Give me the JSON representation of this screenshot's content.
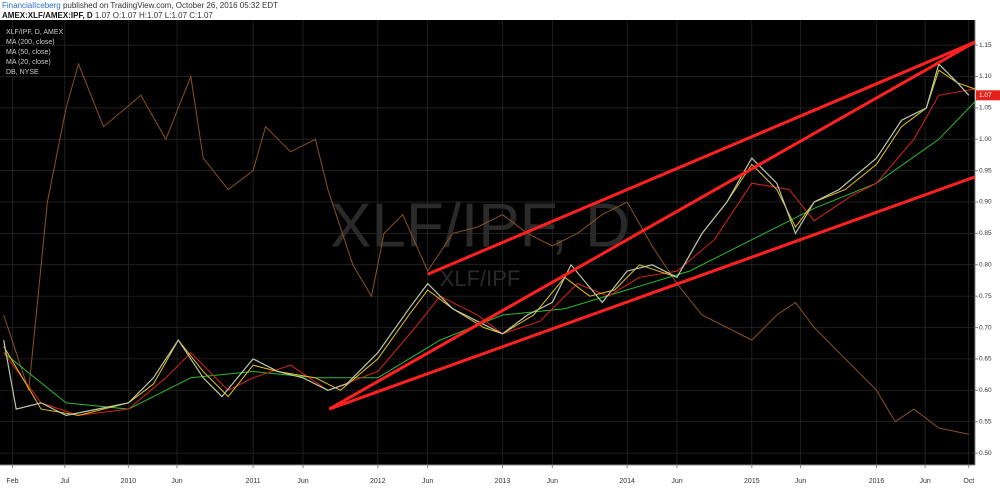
{
  "header": {
    "author": "FinancialIceberg",
    "published": "published on TradingView.com, October 26, 2016 05:32 EDT",
    "symbol": "AMEX:XLF/AMEX:IPF, D",
    "last": 1.07,
    "ohlc": [
      {
        "label": "O:",
        "value": 1.07
      },
      {
        "label": "H:",
        "value": 1.07
      },
      {
        "label": "L:",
        "value": 1.07
      },
      {
        "label": "C:",
        "value": 1.07
      }
    ]
  },
  "chart_data": {
    "type": "line",
    "watermark": "XLF/IPF, D",
    "watermark_small": "XLF/IPF",
    "last_price": 1.07,
    "last_price_color": "#e4221b",
    "grid": true,
    "xlim": [
      2008.97,
      2016.79
    ],
    "ylim": [
      0.481,
      1.19
    ],
    "xticks": [
      {
        "value": 2009.07,
        "label": "Feb"
      },
      {
        "value": 2009.49,
        "label": "Jul"
      },
      {
        "value": 2010.0,
        "label": "2010"
      },
      {
        "value": 2010.39,
        "label": "Jun"
      },
      {
        "value": 2011.0,
        "label": "2011"
      },
      {
        "value": 2011.4,
        "label": "Jun"
      },
      {
        "value": 2012.0,
        "label": "2012"
      },
      {
        "value": 2012.4,
        "label": "Jun"
      },
      {
        "value": 2013.0,
        "label": "2013"
      },
      {
        "value": 2013.4,
        "label": "Jun"
      },
      {
        "value": 2014.0,
        "label": "2014"
      },
      {
        "value": 2014.4,
        "label": "Jun"
      },
      {
        "value": 2015.0,
        "label": "2015"
      },
      {
        "value": 2015.39,
        "label": "Jun"
      },
      {
        "value": 2016.0,
        "label": "2016"
      },
      {
        "value": 2016.39,
        "label": "Jun"
      },
      {
        "value": 2016.74,
        "label": "Oct"
      }
    ],
    "yticks": [
      {
        "value": 0.5,
        "label": "0.50"
      },
      0.55,
      {
        "value": 0.6,
        "label": "0.60"
      },
      0.65,
      {
        "value": 0.7,
        "label": "0.70"
      },
      0.75,
      {
        "value": 0.8,
        "label": "0.80"
      },
      0.85,
      {
        "value": 0.9,
        "label": "0.90"
      },
      0.95,
      {
        "value": 1.0,
        "label": "1.00"
      },
      1.05,
      {
        "value": 1.1,
        "label": "1.10"
      },
      1.15
    ],
    "series": [
      {
        "name": "XLF/IPF, D, AMEX",
        "color": "#b8c8a8",
        "x": [
          2009.0,
          2009.1,
          2009.3,
          2009.5,
          2009.75,
          2010.0,
          2010.2,
          2010.4,
          2010.6,
          2010.75,
          2011.0,
          2011.2,
          2011.4,
          2011.6,
          2011.75,
          2012.0,
          2012.25,
          2012.4,
          2012.6,
          2012.8,
          2013.0,
          2013.2,
          2013.4,
          2013.55,
          2013.8,
          2014.0,
          2014.2,
          2014.4,
          2014.6,
          2014.8,
          2015.0,
          2015.2,
          2015.35,
          2015.5,
          2015.7,
          2016.0,
          2016.2,
          2016.4,
          2016.5,
          2016.65,
          2016.74
        ],
        "values": [
          0.68,
          0.57,
          0.58,
          0.56,
          0.57,
          0.58,
          0.62,
          0.68,
          0.62,
          0.59,
          0.65,
          0.63,
          0.62,
          0.6,
          0.61,
          0.66,
          0.73,
          0.77,
          0.73,
          0.71,
          0.69,
          0.72,
          0.74,
          0.8,
          0.74,
          0.79,
          0.8,
          0.78,
          0.85,
          0.9,
          0.97,
          0.93,
          0.85,
          0.9,
          0.92,
          0.97,
          1.03,
          1.05,
          1.12,
          1.09,
          1.07
        ]
      },
      {
        "name": "MA (200, close)",
        "color": "#2db82d",
        "x": [
          2009.0,
          2009.5,
          2010.0,
          2010.5,
          2011.0,
          2011.5,
          2012.0,
          2012.5,
          2013.0,
          2013.5,
          2014.0,
          2014.5,
          2015.0,
          2015.5,
          2016.0,
          2016.5,
          2016.79
        ],
        "values": [
          0.66,
          0.58,
          0.57,
          0.62,
          0.63,
          0.62,
          0.62,
          0.68,
          0.72,
          0.73,
          0.76,
          0.79,
          0.84,
          0.89,
          0.93,
          1.0,
          1.06
        ]
      },
      {
        "name": "MA (50, close)",
        "color": "#d8231b",
        "x": [
          2009.0,
          2009.3,
          2009.6,
          2010.0,
          2010.3,
          2010.5,
          2010.8,
          2011.0,
          2011.3,
          2011.6,
          2012.0,
          2012.3,
          2012.5,
          2012.8,
          2013.0,
          2013.3,
          2013.6,
          2013.85,
          2014.1,
          2014.4,
          2014.7,
          2015.0,
          2015.3,
          2015.5,
          2015.8,
          2016.0,
          2016.3,
          2016.5,
          2016.79
        ],
        "values": [
          0.66,
          0.58,
          0.56,
          0.57,
          0.62,
          0.66,
          0.6,
          0.62,
          0.64,
          0.6,
          0.63,
          0.7,
          0.75,
          0.72,
          0.69,
          0.71,
          0.77,
          0.75,
          0.78,
          0.79,
          0.84,
          0.93,
          0.92,
          0.87,
          0.91,
          0.93,
          1.0,
          1.07,
          1.08
        ]
      },
      {
        "name": "MA (20, close)",
        "color": "#e8c020",
        "x": [
          2009.0,
          2009.3,
          2009.6,
          2010.0,
          2010.2,
          2010.4,
          2010.6,
          2010.8,
          2011.0,
          2011.2,
          2011.5,
          2011.7,
          2012.0,
          2012.25,
          2012.4,
          2012.6,
          2012.85,
          2013.0,
          2013.25,
          2013.5,
          2013.7,
          2013.9,
          2014.1,
          2014.4,
          2014.6,
          2014.8,
          2015.0,
          2015.2,
          2015.35,
          2015.5,
          2015.75,
          2016.0,
          2016.2,
          2016.4,
          2016.5,
          2016.65,
          2016.79
        ],
        "values": [
          0.67,
          0.57,
          0.56,
          0.58,
          0.61,
          0.68,
          0.63,
          0.59,
          0.64,
          0.63,
          0.62,
          0.6,
          0.65,
          0.72,
          0.76,
          0.73,
          0.7,
          0.69,
          0.72,
          0.78,
          0.75,
          0.76,
          0.8,
          0.78,
          0.85,
          0.9,
          0.96,
          0.92,
          0.86,
          0.9,
          0.92,
          0.96,
          1.02,
          1.05,
          1.11,
          1.09,
          1.08
        ]
      },
      {
        "name": "DB, NYSE",
        "color": "#8a5220",
        "x": [
          2009.0,
          2009.2,
          2009.35,
          2009.5,
          2009.6,
          2009.8,
          2010.1,
          2010.3,
          2010.5,
          2010.6,
          2010.8,
          2011.0,
          2011.1,
          2011.3,
          2011.5,
          2011.6,
          2011.8,
          2011.95,
          2012.05,
          2012.2,
          2012.4,
          2012.6,
          2012.8,
          2013.0,
          2013.2,
          2013.4,
          2013.6,
          2013.8,
          2014.0,
          2014.2,
          2014.4,
          2014.6,
          2014.8,
          2015.0,
          2015.2,
          2015.35,
          2015.5,
          2015.7,
          2016.0,
          2016.15,
          2016.3,
          2016.5,
          2016.74
        ],
        "values": [
          0.72,
          0.6,
          0.9,
          1.05,
          1.12,
          1.02,
          1.07,
          1.0,
          1.1,
          0.97,
          0.92,
          0.95,
          1.02,
          0.98,
          1.0,
          0.92,
          0.8,
          0.75,
          0.85,
          0.88,
          0.79,
          0.85,
          0.86,
          0.88,
          0.85,
          0.83,
          0.85,
          0.88,
          0.9,
          0.83,
          0.77,
          0.72,
          0.7,
          0.68,
          0.72,
          0.74,
          0.7,
          0.66,
          0.6,
          0.55,
          0.57,
          0.54,
          0.53
        ]
      }
    ],
    "trendlines": [
      {
        "color": "#ff2020",
        "x": [
          2011.61,
          2016.79
        ],
        "values": [
          0.57,
          1.155
        ]
      },
      {
        "color": "#ff2020",
        "x": [
          2011.61,
          2016.79
        ],
        "values": [
          0.57,
          0.94
        ]
      },
      {
        "color": "#ff2020",
        "x": [
          2012.4,
          2016.79
        ],
        "values": [
          0.785,
          1.155
        ]
      }
    ]
  }
}
